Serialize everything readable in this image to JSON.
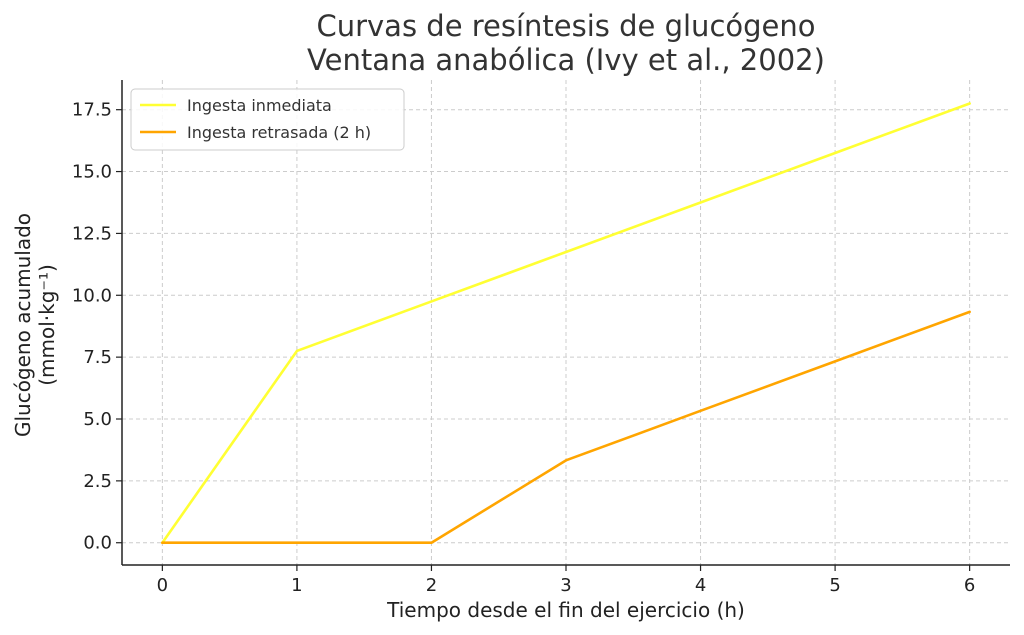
{
  "chart_data": {
    "type": "line",
    "title": [
      "Curvas de resíntesis de glucógeno",
      "Ventana anabólica (Ivy et al., 2002)"
    ],
    "xlabel": "Tiempo desde el fin del ejercicio (h)",
    "ylabel": [
      "Glucógeno acumulado",
      "(mmol·kg⁻¹)"
    ],
    "x": [
      0,
      1,
      2,
      3,
      4,
      5,
      6
    ],
    "xticks": [
      "0",
      "1",
      "2",
      "3",
      "4",
      "5",
      "6"
    ],
    "yticks": [
      "0.0",
      "2.5",
      "5.0",
      "7.5",
      "10.0",
      "12.5",
      "15.0",
      "17.5"
    ],
    "ytick_values": [
      0,
      2.5,
      5,
      7.5,
      10,
      12.5,
      15,
      17.5
    ],
    "xlim": [
      -0.3,
      6.3
    ],
    "ylim": [
      -0.9,
      18.7
    ],
    "grid": true,
    "legend_position": "top-left",
    "series": [
      {
        "name": "Ingesta inmediata",
        "color": "#FFFF33",
        "values": [
          0,
          7.75,
          9.75,
          11.75,
          13.75,
          15.75,
          17.75
        ]
      },
      {
        "name": "Ingesta retrasada (2 h)",
        "color": "#FFA500",
        "values": [
          0,
          0,
          0,
          3.33,
          5.33,
          7.33,
          9.33
        ]
      }
    ]
  }
}
